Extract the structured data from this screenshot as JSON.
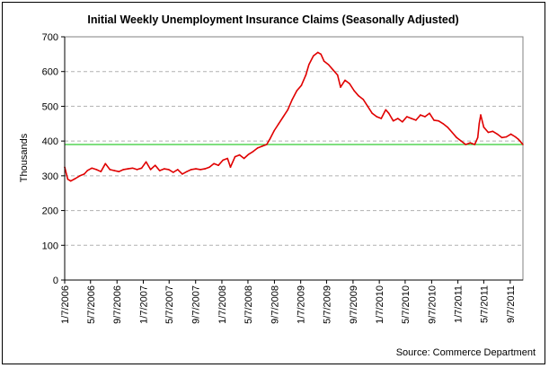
{
  "chart_data": {
    "type": "line",
    "title": "Initial Weekly Unemployment Insurance Claims (Seasonally Adjusted)",
    "ylabel": "Thousands",
    "xlabel": "",
    "source": "Source: Commerce Department",
    "ylim": [
      0,
      700
    ],
    "yticks": [
      0,
      100,
      200,
      300,
      400,
      500,
      600,
      700
    ],
    "x_range": [
      "2006-01-07",
      "2011-11-05"
    ],
    "x_tick_labels": [
      "1/7/2006",
      "5/7/2006",
      "9/7/2006",
      "1/7/2007",
      "5/7/2007",
      "9/7/2007",
      "1/7/2008",
      "5/7/2008",
      "9/7/2008",
      "1/7/2009",
      "5/7/2009",
      "9/7/2009",
      "1/7/2010",
      "5/7/2010",
      "9/7/2010",
      "1/7/2011",
      "5/7/2011",
      "9/7/2011"
    ],
    "x_tick_dates": [
      "2006-01-07",
      "2006-05-07",
      "2006-09-07",
      "2007-01-07",
      "2007-05-07",
      "2007-09-07",
      "2008-01-07",
      "2008-05-07",
      "2008-09-07",
      "2009-01-07",
      "2009-05-07",
      "2009-09-07",
      "2010-01-07",
      "2010-05-07",
      "2010-09-07",
      "2011-01-07",
      "2011-05-07",
      "2011-09-07"
    ],
    "grid": "horizontal dashed",
    "reference_line": {
      "value": 390,
      "color": "#33cc33"
    },
    "series": [
      {
        "color": "#e00000",
        "points": [
          [
            "2006-01-07",
            325
          ],
          [
            "2006-01-21",
            290
          ],
          [
            "2006-02-04",
            285
          ],
          [
            "2006-02-25",
            292
          ],
          [
            "2006-03-18",
            300
          ],
          [
            "2006-04-08",
            305
          ],
          [
            "2006-04-22",
            315
          ],
          [
            "2006-05-13",
            322
          ],
          [
            "2006-06-03",
            318
          ],
          [
            "2006-06-24",
            312
          ],
          [
            "2006-07-15",
            335
          ],
          [
            "2006-08-05",
            318
          ],
          [
            "2006-08-26",
            315
          ],
          [
            "2006-09-16",
            312
          ],
          [
            "2006-10-07",
            318
          ],
          [
            "2006-10-28",
            320
          ],
          [
            "2006-11-18",
            322
          ],
          [
            "2006-12-09",
            318
          ],
          [
            "2006-12-30",
            322
          ],
          [
            "2007-01-20",
            340
          ],
          [
            "2007-02-10",
            318
          ],
          [
            "2007-03-03",
            330
          ],
          [
            "2007-03-24",
            315
          ],
          [
            "2007-04-14",
            320
          ],
          [
            "2007-05-05",
            318
          ],
          [
            "2007-05-26",
            310
          ],
          [
            "2007-06-16",
            318
          ],
          [
            "2007-07-07",
            305
          ],
          [
            "2007-07-28",
            312
          ],
          [
            "2007-08-18",
            318
          ],
          [
            "2007-09-08",
            320
          ],
          [
            "2007-09-29",
            318
          ],
          [
            "2007-10-20",
            320
          ],
          [
            "2007-11-10",
            325
          ],
          [
            "2007-12-01",
            335
          ],
          [
            "2007-12-22",
            330
          ],
          [
            "2008-01-12",
            345
          ],
          [
            "2008-02-02",
            350
          ],
          [
            "2008-02-16",
            325
          ],
          [
            "2008-03-08",
            355
          ],
          [
            "2008-03-29",
            360
          ],
          [
            "2008-04-19",
            350
          ],
          [
            "2008-05-10",
            362
          ],
          [
            "2008-05-31",
            370
          ],
          [
            "2008-06-21",
            380
          ],
          [
            "2008-07-12",
            385
          ],
          [
            "2008-08-02",
            390
          ],
          [
            "2008-08-16",
            405
          ],
          [
            "2008-09-06",
            430
          ],
          [
            "2008-09-27",
            450
          ],
          [
            "2008-10-18",
            470
          ],
          [
            "2008-11-08",
            490
          ],
          [
            "2008-11-29",
            520
          ],
          [
            "2008-12-20",
            545
          ],
          [
            "2009-01-10",
            560
          ],
          [
            "2009-01-31",
            590
          ],
          [
            "2009-02-14",
            620
          ],
          [
            "2009-03-07",
            645
          ],
          [
            "2009-03-28",
            655
          ],
          [
            "2009-04-11",
            650
          ],
          [
            "2009-04-25",
            630
          ],
          [
            "2009-05-16",
            620
          ],
          [
            "2009-06-06",
            605
          ],
          [
            "2009-06-27",
            590
          ],
          [
            "2009-07-11",
            555
          ],
          [
            "2009-08-01",
            575
          ],
          [
            "2009-08-22",
            565
          ],
          [
            "2009-09-12",
            545
          ],
          [
            "2009-10-03",
            530
          ],
          [
            "2009-10-24",
            520
          ],
          [
            "2009-11-14",
            500
          ],
          [
            "2009-12-05",
            480
          ],
          [
            "2009-12-26",
            470
          ],
          [
            "2010-01-16",
            465
          ],
          [
            "2010-02-06",
            490
          ],
          [
            "2010-02-20",
            480
          ],
          [
            "2010-03-13",
            458
          ],
          [
            "2010-04-03",
            465
          ],
          [
            "2010-04-24",
            455
          ],
          [
            "2010-05-15",
            470
          ],
          [
            "2010-06-05",
            465
          ],
          [
            "2010-06-26",
            460
          ],
          [
            "2010-07-17",
            475
          ],
          [
            "2010-08-07",
            470
          ],
          [
            "2010-08-28",
            480
          ],
          [
            "2010-09-18",
            460
          ],
          [
            "2010-10-09",
            458
          ],
          [
            "2010-10-30",
            450
          ],
          [
            "2010-11-20",
            440
          ],
          [
            "2010-12-11",
            425
          ],
          [
            "2011-01-01",
            410
          ],
          [
            "2011-01-22",
            400
          ],
          [
            "2011-02-12",
            390
          ],
          [
            "2011-03-05",
            395
          ],
          [
            "2011-03-26",
            390
          ],
          [
            "2011-04-09",
            410
          ],
          [
            "2011-04-16",
            450
          ],
          [
            "2011-04-23",
            475
          ],
          [
            "2011-05-07",
            440
          ],
          [
            "2011-05-28",
            425
          ],
          [
            "2011-06-18",
            428
          ],
          [
            "2011-07-09",
            420
          ],
          [
            "2011-07-30",
            410
          ],
          [
            "2011-08-20",
            412
          ],
          [
            "2011-09-10",
            420
          ],
          [
            "2011-10-01",
            412
          ],
          [
            "2011-10-15",
            405
          ],
          [
            "2011-11-05",
            390
          ]
        ]
      }
    ]
  }
}
